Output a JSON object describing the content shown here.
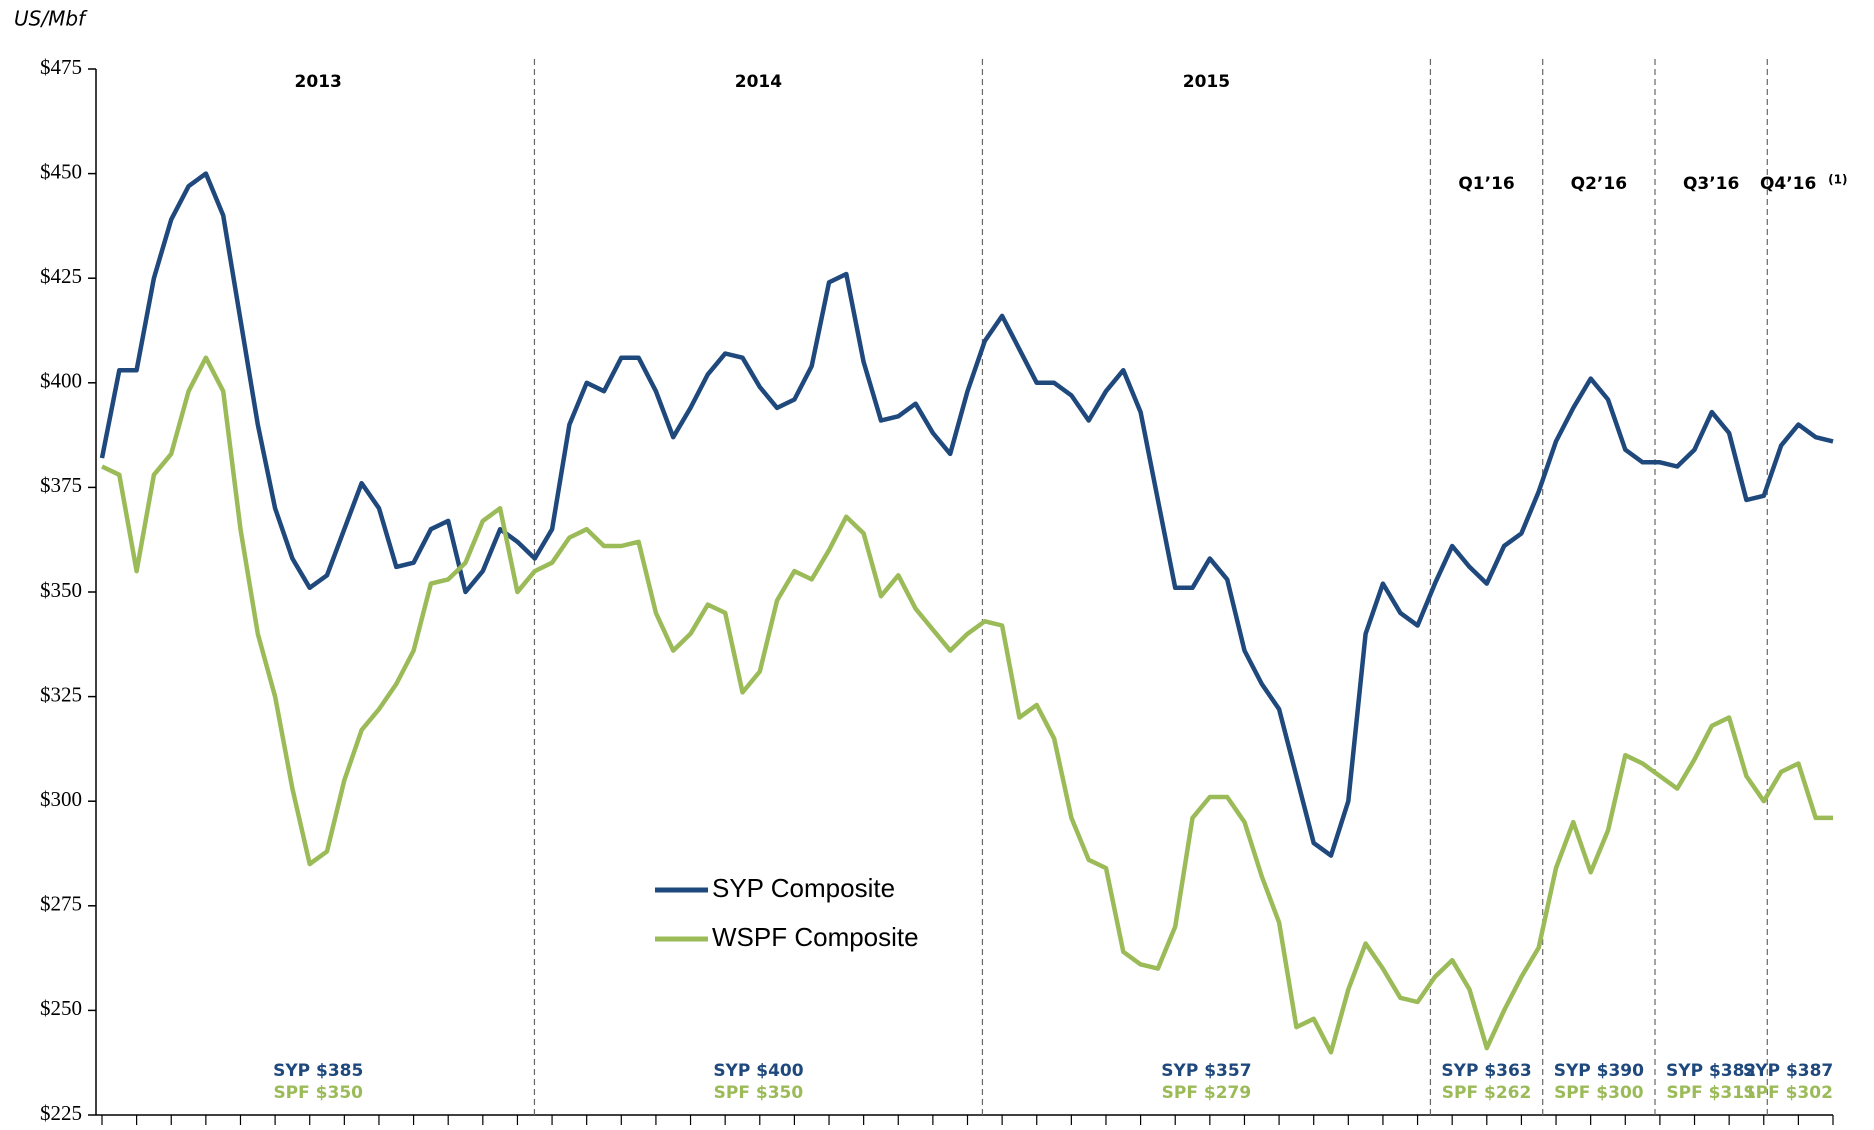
{
  "chart_data": {
    "type": "line",
    "axis_label": "US/Mbf",
    "categories": [
      null,
      null,
      null,
      null,
      null,
      null,
      null,
      null,
      null,
      null,
      null,
      null,
      null,
      null,
      null,
      null,
      null,
      null,
      null,
      null,
      null,
      null,
      null,
      null,
      null,
      null,
      null,
      null,
      null,
      null,
      null,
      null,
      null,
      null,
      null,
      null,
      null,
      null,
      null,
      null,
      null,
      null,
      null,
      null,
      null,
      null,
      null,
      null,
      null,
      null,
      null,
      null,
      null,
      null,
      null,
      null,
      null,
      null,
      null,
      null,
      null,
      null,
      null,
      null,
      null,
      null,
      null,
      null,
      null,
      null,
      null,
      null,
      null,
      null,
      null,
      null,
      null,
      null,
      null,
      null,
      null,
      null,
      null,
      null,
      null,
      null,
      null,
      null,
      null,
      null,
      null,
      null,
      null,
      null,
      null,
      null,
      null,
      null,
      null,
      null,
      null
    ],
    "series": [
      {
        "name": "SYP Composite",
        "color": "#1f497d",
        "values": [
          382,
          403,
          403,
          425,
          439,
          447,
          450,
          440,
          415,
          390,
          370,
          358,
          351,
          354,
          365,
          376,
          370,
          356,
          357,
          365,
          367,
          350,
          355,
          365,
          362,
          358,
          365,
          390,
          400,
          398,
          406,
          406,
          398,
          387,
          394,
          402,
          407,
          406,
          399,
          394,
          396,
          404,
          424,
          426,
          405,
          391,
          392,
          395,
          388,
          383,
          398,
          410,
          416,
          408,
          400,
          400,
          397,
          391,
          398,
          403,
          393,
          372,
          351,
          351,
          358,
          353,
          336,
          328,
          322,
          306,
          290,
          287,
          300,
          340,
          352,
          345,
          342,
          352,
          361,
          356,
          352,
          361,
          364,
          374,
          386,
          394,
          401,
          396,
          384,
          381,
          381,
          380,
          384,
          393,
          388,
          372,
          373,
          385,
          390,
          387,
          386
        ]
      },
      {
        "name": "WSPF Composite",
        "color": "#9bbb59",
        "values": [
          380,
          378,
          355,
          378,
          383,
          398,
          406,
          398,
          365,
          340,
          325,
          303,
          285,
          288,
          305,
          317,
          322,
          328,
          336,
          352,
          353,
          357,
          367,
          370,
          350,
          355,
          357,
          363,
          365,
          361,
          361,
          362,
          345,
          336,
          340,
          347,
          345,
          326,
          331,
          348,
          355,
          353,
          360,
          368,
          364,
          349,
          354,
          346,
          341,
          336,
          340,
          343,
          342,
          320,
          323,
          315,
          296,
          286,
          284,
          264,
          261,
          260,
          270,
          296,
          301,
          301,
          295,
          282,
          271,
          246,
          248,
          240,
          255,
          266,
          260,
          253,
          252,
          258,
          262,
          255,
          241,
          250,
          258,
          265,
          284,
          295,
          283,
          293,
          311,
          309,
          306,
          303,
          310,
          318,
          320,
          306,
          300,
          307,
          309,
          296,
          296
        ]
      }
    ],
    "ylim": [
      225,
      475
    ],
    "yticks": [
      {
        "value": 225,
        "label": "$225"
      },
      {
        "value": 250,
        "label": "$250"
      },
      {
        "value": 275,
        "label": "$275"
      },
      {
        "value": 300,
        "label": "$300"
      },
      {
        "value": 325,
        "label": "$325"
      },
      {
        "value": 350,
        "label": "$350"
      },
      {
        "value": 375,
        "label": "$375"
      },
      {
        "value": 400,
        "label": "$400"
      },
      {
        "value": 425,
        "label": "$425"
      },
      {
        "value": 450,
        "label": "$450"
      },
      {
        "value": 475,
        "label": "$475"
      }
    ],
    "periods": [
      {
        "label": "2013",
        "syp": "SYP  $385",
        "spf": "SPF  $350"
      },
      {
        "label": "2014",
        "syp": "SYP  $400",
        "spf": "SPF  $350"
      },
      {
        "label": "2015",
        "syp": "SYP  $357",
        "spf": "SPF  $279"
      },
      {
        "label": "Q1’16",
        "syp": "SYP $363",
        "spf": "SPF $262"
      },
      {
        "label": "Q2’16",
        "syp": "SYP $390",
        "spf": "SPF $300"
      },
      {
        "label": "Q3’16",
        "syp": "SYP $382",
        "spf": "SPF $311"
      },
      {
        "label": "Q4’16",
        "note": "(1)",
        "syp": "SYP $387",
        "spf": "SPF $302"
      }
    ],
    "legend": "center-left"
  }
}
